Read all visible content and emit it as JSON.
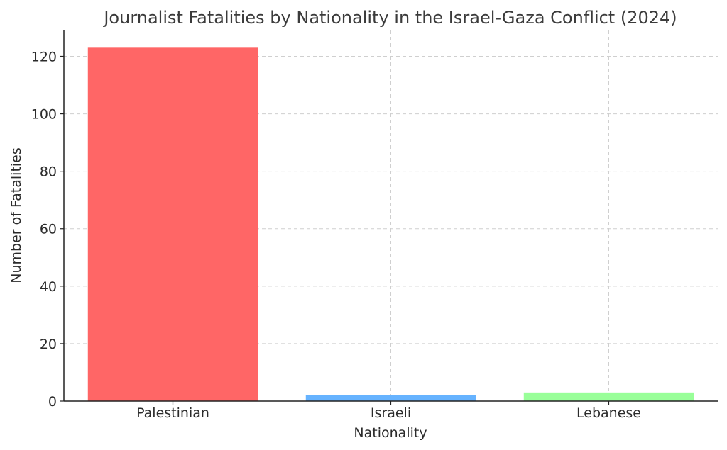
{
  "chart_data": {
    "type": "bar",
    "title": "Journalist Fatalities by Nationality in the Israel-Gaza Conflict (2024)",
    "xlabel": "Nationality",
    "ylabel": "Number of Fatalities",
    "categories": [
      "Palestinian",
      "Israeli",
      "Lebanese"
    ],
    "values": [
      123,
      2,
      3
    ],
    "colors": [
      "#ff6666",
      "#66b3ff",
      "#99ff99"
    ],
    "ylim": [
      0,
      129
    ],
    "yticks": [
      0,
      20,
      40,
      60,
      80,
      100,
      120
    ],
    "grid": true
  },
  "decoration": {
    "name": "striped-figure",
    "colors": [
      "#000000",
      "#8b1a1a"
    ]
  }
}
